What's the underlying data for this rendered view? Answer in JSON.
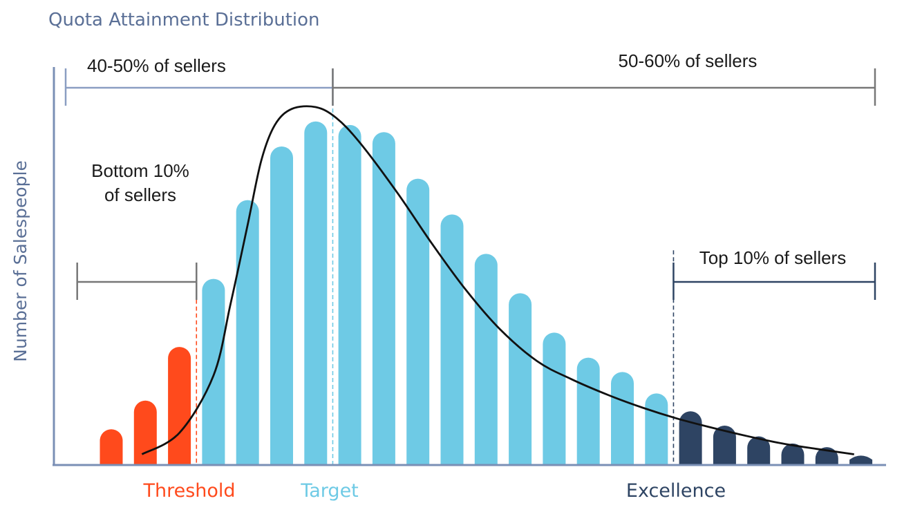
{
  "chart_data": {
    "type": "bar",
    "title": "Quota Attainment Distribution",
    "xlabel": "",
    "ylabel": "Number of Salespeople",
    "ylim": [
      0,
      100
    ],
    "grid": false,
    "legend": "none",
    "values": [
      10,
      18,
      33,
      52,
      74,
      89,
      96,
      95,
      93,
      80,
      70,
      59,
      48,
      37,
      30,
      26,
      20,
      15,
      11,
      8,
      6,
      5,
      3
    ],
    "groups": [
      {
        "name": "bottom",
        "color": "#ff4a1c",
        "count": 3
      },
      {
        "name": "core",
        "color": "#6ecae5",
        "count": 14
      },
      {
        "name": "top",
        "color": "#2e4463",
        "count": 6
      }
    ],
    "curve": [
      [
        0.9,
        3
      ],
      [
        2.0,
        9
      ],
      [
        3.0,
        25
      ],
      [
        3.5,
        45
      ],
      [
        4.0,
        67
      ],
      [
        4.4,
        85
      ],
      [
        4.8,
        95
      ],
      [
        5.3,
        99.5
      ],
      [
        6.0,
        100
      ],
      [
        6.6,
        97
      ],
      [
        7.3,
        90
      ],
      [
        8.4,
        76
      ],
      [
        9.4,
        62
      ],
      [
        10.4,
        49
      ],
      [
        11.4,
        38
      ],
      [
        12.5,
        29
      ],
      [
        13.5,
        24
      ],
      [
        14.6,
        19.5
      ],
      [
        15.6,
        16
      ],
      [
        16.6,
        13
      ],
      [
        17.6,
        10.5
      ],
      [
        18.7,
        8
      ],
      [
        19.7,
        6
      ],
      [
        20.7,
        4.5
      ],
      [
        21.8,
        3
      ]
    ],
    "markers": [
      {
        "label": "Threshold",
        "color": "#ff4a1c",
        "position": 2.5
      },
      {
        "label": "Target",
        "color": "#6ecae5",
        "position": 6.5
      },
      {
        "label": "Excellence",
        "color": "#2e4463",
        "position": 16.5
      }
    ],
    "annotations": [
      {
        "text": "40-50% of sellers",
        "from": -1,
        "to": 6.5,
        "level": "high",
        "color": "#8a9ec2"
      },
      {
        "text": "50-60% of sellers",
        "from": 6.5,
        "to": 22.7,
        "level": "high",
        "color": "#777777"
      },
      {
        "text_lines": [
          "Bottom 10%",
          "of sellers"
        ],
        "from": -1,
        "to": 2.5,
        "level": "mid",
        "color": "#777777"
      },
      {
        "text": "Top 10% of sellers",
        "from": 16.5,
        "to": 22.7,
        "level": "mid",
        "color": "#2e4463"
      }
    ]
  }
}
